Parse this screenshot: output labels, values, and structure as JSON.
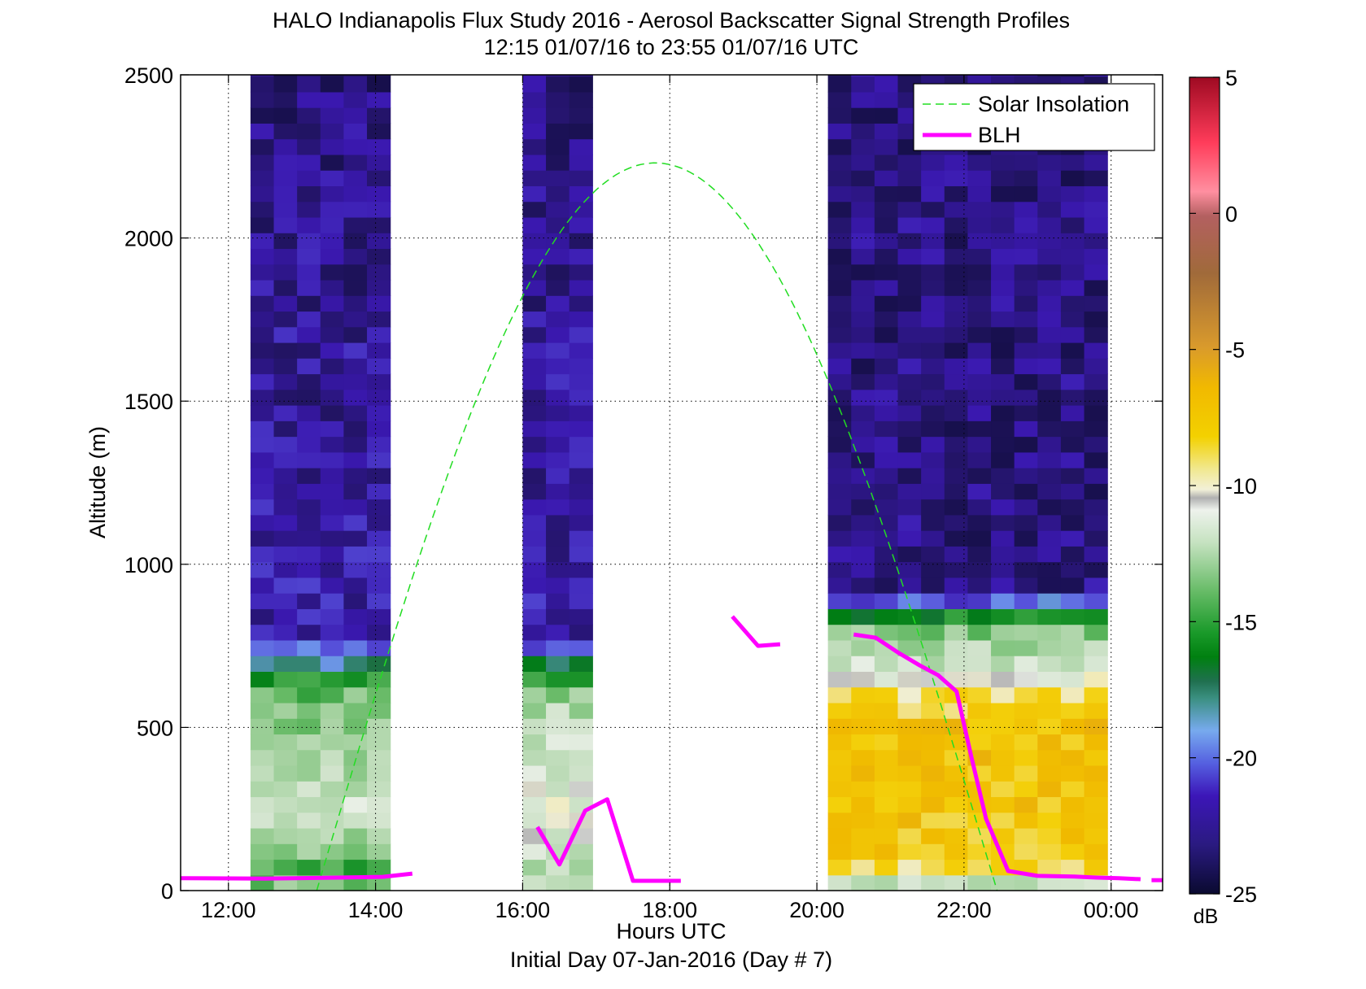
{
  "chart_data": {
    "type": "heatmap",
    "title": "HALO Indianapolis Flux Study 2016 - Aerosol Backscatter Signal Strength Profiles",
    "subtitle": "12:15 01/07/16 to 23:55 01/07/16  UTC",
    "xlabel": "Hours UTC",
    "xlabel2": "Initial Day 07-Jan-2016 (Day # 7)",
    "ylabel": "Altitude (m)",
    "xlim": [
      11.35,
      24.7
    ],
    "ylim": [
      0,
      2500
    ],
    "x_ticks": [
      12,
      14,
      16,
      18,
      20,
      22,
      24
    ],
    "x_tick_labels": [
      "12:00",
      "14:00",
      "16:00",
      "18:00",
      "20:00",
      "22:00",
      "00:00"
    ],
    "y_ticks": [
      0,
      500,
      1000,
      1500,
      2000,
      2500
    ],
    "y_tick_labels": [
      "0",
      "500",
      "1000",
      "1500",
      "2000",
      "2500"
    ],
    "grid": true,
    "legend_position": "top-right",
    "colorbar": {
      "label": "dB",
      "range": [
        -25,
        5
      ],
      "ticks": [
        5,
        0,
        -5,
        -10,
        -15,
        -20,
        -25
      ],
      "tick_labels": [
        "5",
        "0",
        "-5",
        "-10",
        "-15",
        "-20",
        "-25"
      ]
    },
    "gate_height_m": 48,
    "data_blocks": [
      {
        "x_start": 12.3,
        "x_end": 14.2,
        "columns": 6
      },
      {
        "x_start": 16.0,
        "x_end": 16.95,
        "columns": 3
      },
      {
        "x_start": 20.15,
        "x_end": 23.95,
        "columns": 12
      }
    ],
    "mean_profiles": [
      {
        "profile": [
          [
            0,
            -11
          ],
          [
            50,
            -16
          ],
          [
            100,
            -13
          ],
          [
            250,
            -11
          ],
          [
            330,
            -12
          ],
          [
            620,
            -14
          ],
          [
            670,
            -17
          ],
          [
            720,
            -20
          ],
          [
            800,
            -22
          ],
          [
            2500,
            -23
          ]
        ]
      },
      {
        "profile": [
          [
            0,
            -10
          ],
          [
            50,
            -12
          ],
          [
            100,
            -11
          ],
          [
            250,
            -10
          ],
          [
            560,
            -12
          ],
          [
            620,
            -14
          ],
          [
            680,
            -16
          ],
          [
            720,
            -19
          ],
          [
            780,
            -22
          ],
          [
            2500,
            -23
          ]
        ]
      },
      {
        "profile": [
          [
            0,
            -16
          ],
          [
            40,
            -9
          ],
          [
            100,
            -7
          ],
          [
            500,
            -6.5
          ],
          [
            620,
            -8.5
          ],
          [
            680,
            -11
          ],
          [
            740,
            -12
          ],
          [
            820,
            -14
          ],
          [
            880,
            -20
          ],
          [
            940,
            -23
          ],
          [
            2500,
            -23
          ]
        ]
      }
    ],
    "series": [
      {
        "name": "Solar Insolation",
        "style": "dashed",
        "color": "#22dd22",
        "peak": {
          "x": 17.8,
          "y": 2230
        },
        "zero_crossings": [
          13.2,
          22.45
        ]
      },
      {
        "name": "BLH",
        "style": "solid",
        "color": "#ff00ff",
        "segments": [
          [
            [
              11.35,
              38
            ],
            [
              12.5,
              37
            ],
            [
              13.5,
              40
            ],
            [
              14.1,
              42
            ],
            [
              14.5,
              52
            ]
          ],
          [
            [
              16.2,
              195
            ],
            [
              16.5,
              80
            ],
            [
              16.85,
              245
            ],
            [
              17.15,
              280
            ],
            [
              17.5,
              30
            ],
            [
              17.85,
              30
            ],
            [
              18.15,
              30
            ]
          ],
          [
            [
              18.85,
              840
            ],
            [
              19.2,
              750
            ],
            [
              19.5,
              755
            ]
          ],
          [
            [
              20.5,
              785
            ],
            [
              20.8,
              775
            ],
            [
              21.1,
              730
            ],
            [
              21.4,
              690
            ],
            [
              21.65,
              660
            ],
            [
              21.9,
              610
            ],
            [
              22.1,
              410
            ],
            [
              22.3,
              220
            ],
            [
              22.6,
              60
            ],
            [
              23.0,
              45
            ],
            [
              23.5,
              43
            ],
            [
              23.8,
              40
            ],
            [
              24.1,
              38
            ],
            [
              24.4,
              35
            ]
          ],
          [
            [
              24.55,
              32
            ],
            [
              24.7,
              32
            ]
          ]
        ]
      }
    ]
  }
}
